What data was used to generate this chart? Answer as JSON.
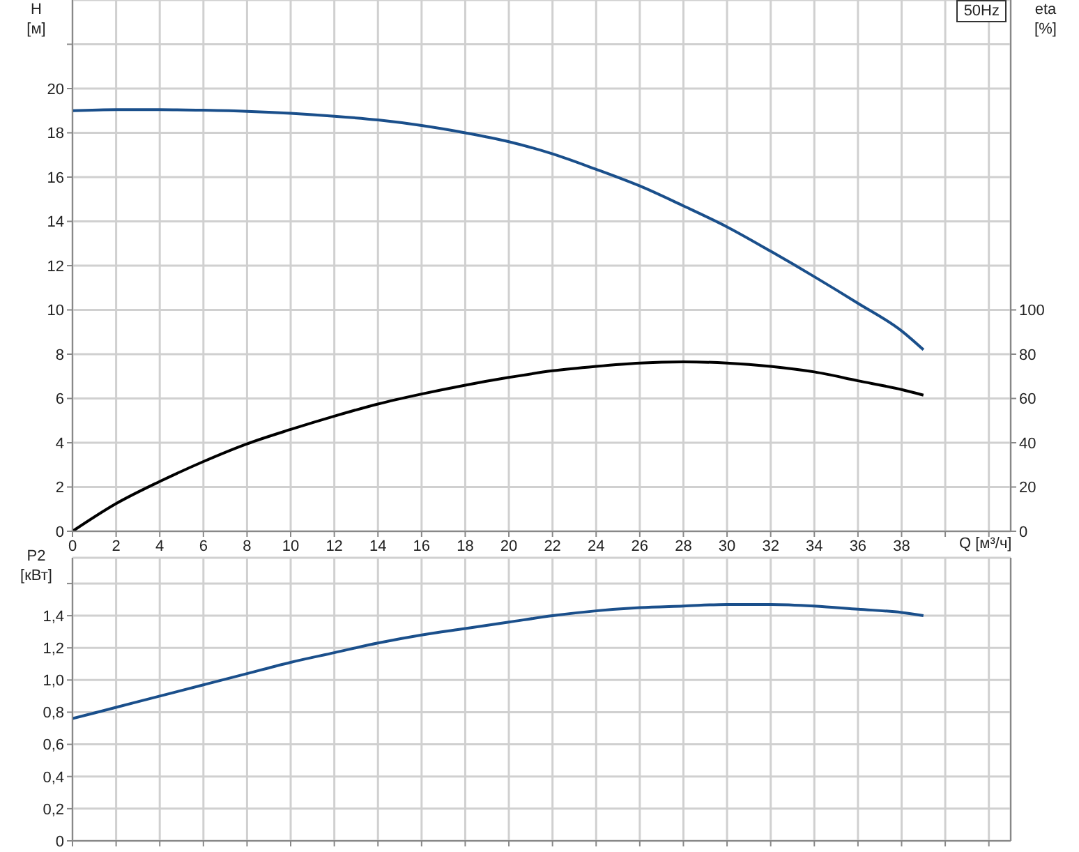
{
  "chart_data": [
    {
      "type": "line",
      "xlabel": "Q [м³/ч]",
      "ylabel": "H [м]",
      "y2label": "eta [%]",
      "annotations": [
        "50Hz"
      ],
      "x": [
        0,
        2,
        4,
        6,
        8,
        10,
        12,
        14,
        16,
        18,
        20,
        22,
        24,
        26,
        28,
        30,
        32,
        34,
        36,
        38,
        39
      ],
      "series": [
        {
          "color": "#1a4f8b",
          "values": [
            19.0,
            19.05,
            19.05,
            19.02,
            18.97,
            18.88,
            18.75,
            18.58,
            18.33,
            18.0,
            17.6,
            17.05,
            16.35,
            15.6,
            14.7,
            13.75,
            12.65,
            11.5,
            10.3,
            9.05,
            8.2
          ]
        },
        {
          "color": "#000000",
          "axis": "y2",
          "values": [
            0,
            12.5,
            22.5,
            31.5,
            39.5,
            46,
            52,
            57.5,
            62,
            66,
            69.5,
            72.5,
            74.5,
            76,
            76.5,
            76,
            74.5,
            72,
            68,
            64,
            61.5
          ]
        }
      ],
      "xlim": [
        0,
        43
      ],
      "xticks": [
        0,
        2,
        4,
        6,
        8,
        10,
        12,
        14,
        16,
        18,
        20,
        22,
        24,
        26,
        28,
        30,
        32,
        34,
        36,
        38,
        {
          "value": 40,
          "label": null
        },
        {
          "value": 42,
          "label": null
        }
      ],
      "ylim": [
        0,
        24
      ],
      "yticks": [
        0,
        2,
        4,
        6,
        8,
        10,
        12,
        14,
        16,
        18,
        20,
        {
          "value": 22,
          "label": null
        }
      ],
      "y2lim": [
        0,
        240
      ],
      "y2ticks": [
        0,
        20,
        40,
        60,
        80,
        100
      ],
      "grid": true
    },
    {
      "type": "line",
      "ylabel": "P2 [кВт]",
      "tick_labels": "y",
      "x": [
        0,
        2,
        4,
        6,
        8,
        10,
        12,
        14,
        16,
        18,
        20,
        22,
        24,
        26,
        28,
        30,
        32,
        34,
        36,
        38,
        39
      ],
      "series": [
        {
          "color": "#1a4f8b",
          "values": [
            0.76,
            0.83,
            0.9,
            0.97,
            1.04,
            1.11,
            1.17,
            1.23,
            1.28,
            1.32,
            1.36,
            1.4,
            1.43,
            1.45,
            1.46,
            1.47,
            1.47,
            1.46,
            1.44,
            1.42,
            1.4
          ]
        }
      ],
      "xlim": [
        0,
        43
      ],
      "xticks": [
        0,
        2,
        4,
        6,
        8,
        10,
        12,
        14,
        16,
        18,
        20,
        22,
        24,
        26,
        28,
        30,
        32,
        34,
        36,
        38,
        40,
        42
      ],
      "ylim": [
        0,
        1.76
      ],
      "yticks": [
        0,
        {
          "value": 0.2,
          "label": "0,2"
        },
        {
          "value": 0.4,
          "label": "0,4"
        },
        {
          "value": 0.6,
          "label": "0,6"
        },
        {
          "value": 0.8,
          "label": "0,8"
        },
        {
          "value": 1.0,
          "label": "1,0"
        },
        {
          "value": 1.2,
          "label": "1,2"
        },
        {
          "value": 1.4,
          "label": "1,4"
        },
        {
          "value": 1.6,
          "label": null
        }
      ],
      "grid": true
    }
  ]
}
